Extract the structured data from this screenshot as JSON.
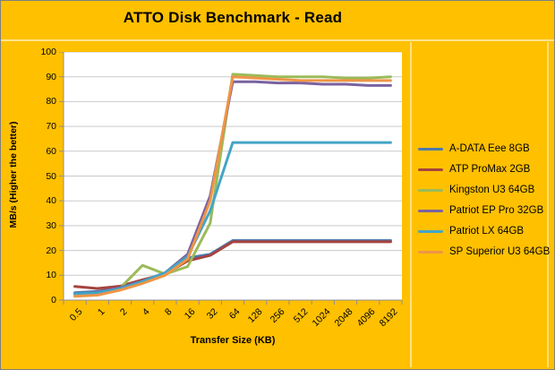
{
  "colors": {
    "background": "#FFC000",
    "plot_background": "#FFFFFF",
    "gridline": "#C9C9C9",
    "axis_line": "#8E8E8E",
    "text": "#000000"
  },
  "chart_data": {
    "type": "line",
    "title": "ATTO Disk Benchmark - Read",
    "xlabel": "Transfer Size (KB)",
    "ylabel": "MB/s (Higher the better)",
    "ylim": [
      0,
      100
    ],
    "yticks": [
      0,
      10,
      20,
      30,
      40,
      50,
      60,
      70,
      80,
      90,
      100
    ],
    "grid": true,
    "legend_position": "right",
    "categories": [
      "0.5",
      "1",
      "2",
      "4",
      "8",
      "16",
      "32",
      "64",
      "128",
      "256",
      "512",
      "1024",
      "2048",
      "4096",
      "8192"
    ],
    "series": [
      {
        "name": "A-DATA Eee 8GB",
        "color": "#4C79AE",
        "values": [
          3,
          3.5,
          5,
          7.5,
          11,
          17,
          18.5,
          24,
          24,
          24,
          24,
          24,
          24,
          24,
          24
        ]
      },
      {
        "name": "ATP ProMax 2GB",
        "color": "#A6433F",
        "values": [
          5.5,
          4.7,
          5.6,
          8.2,
          10.5,
          15.8,
          18,
          23.5,
          23.5,
          23.5,
          23.5,
          23.5,
          23.5,
          23.5,
          23.5
        ]
      },
      {
        "name": "Kingston U3 64GB",
        "color": "#9BBB59",
        "values": [
          2.2,
          3,
          4.8,
          14,
          10.5,
          13.5,
          31,
          91,
          90.5,
          90,
          90,
          90,
          89.5,
          89.5,
          90
        ]
      },
      {
        "name": "Patriot EP Pro 32GB",
        "color": "#7A62A0",
        "values": [
          2.3,
          3.2,
          5,
          7.6,
          11,
          18.5,
          42,
          88,
          88,
          87.5,
          87.5,
          87,
          87,
          86.5,
          86.5
        ]
      },
      {
        "name": "Patriot LX 64GB",
        "color": "#43A5C5",
        "values": [
          2.5,
          3,
          4.6,
          7.5,
          11,
          17.5,
          36,
          63.5,
          63.5,
          63.5,
          63.5,
          63.5,
          63.5,
          63.5,
          63.5
        ]
      },
      {
        "name": "SP Superior U3 64GB",
        "color": "#EF9546",
        "values": [
          1.5,
          2,
          4,
          6.7,
          10,
          16.5,
          40,
          90,
          89.5,
          89,
          88.5,
          88.5,
          88.5,
          88.5,
          88.5
        ]
      }
    ]
  }
}
